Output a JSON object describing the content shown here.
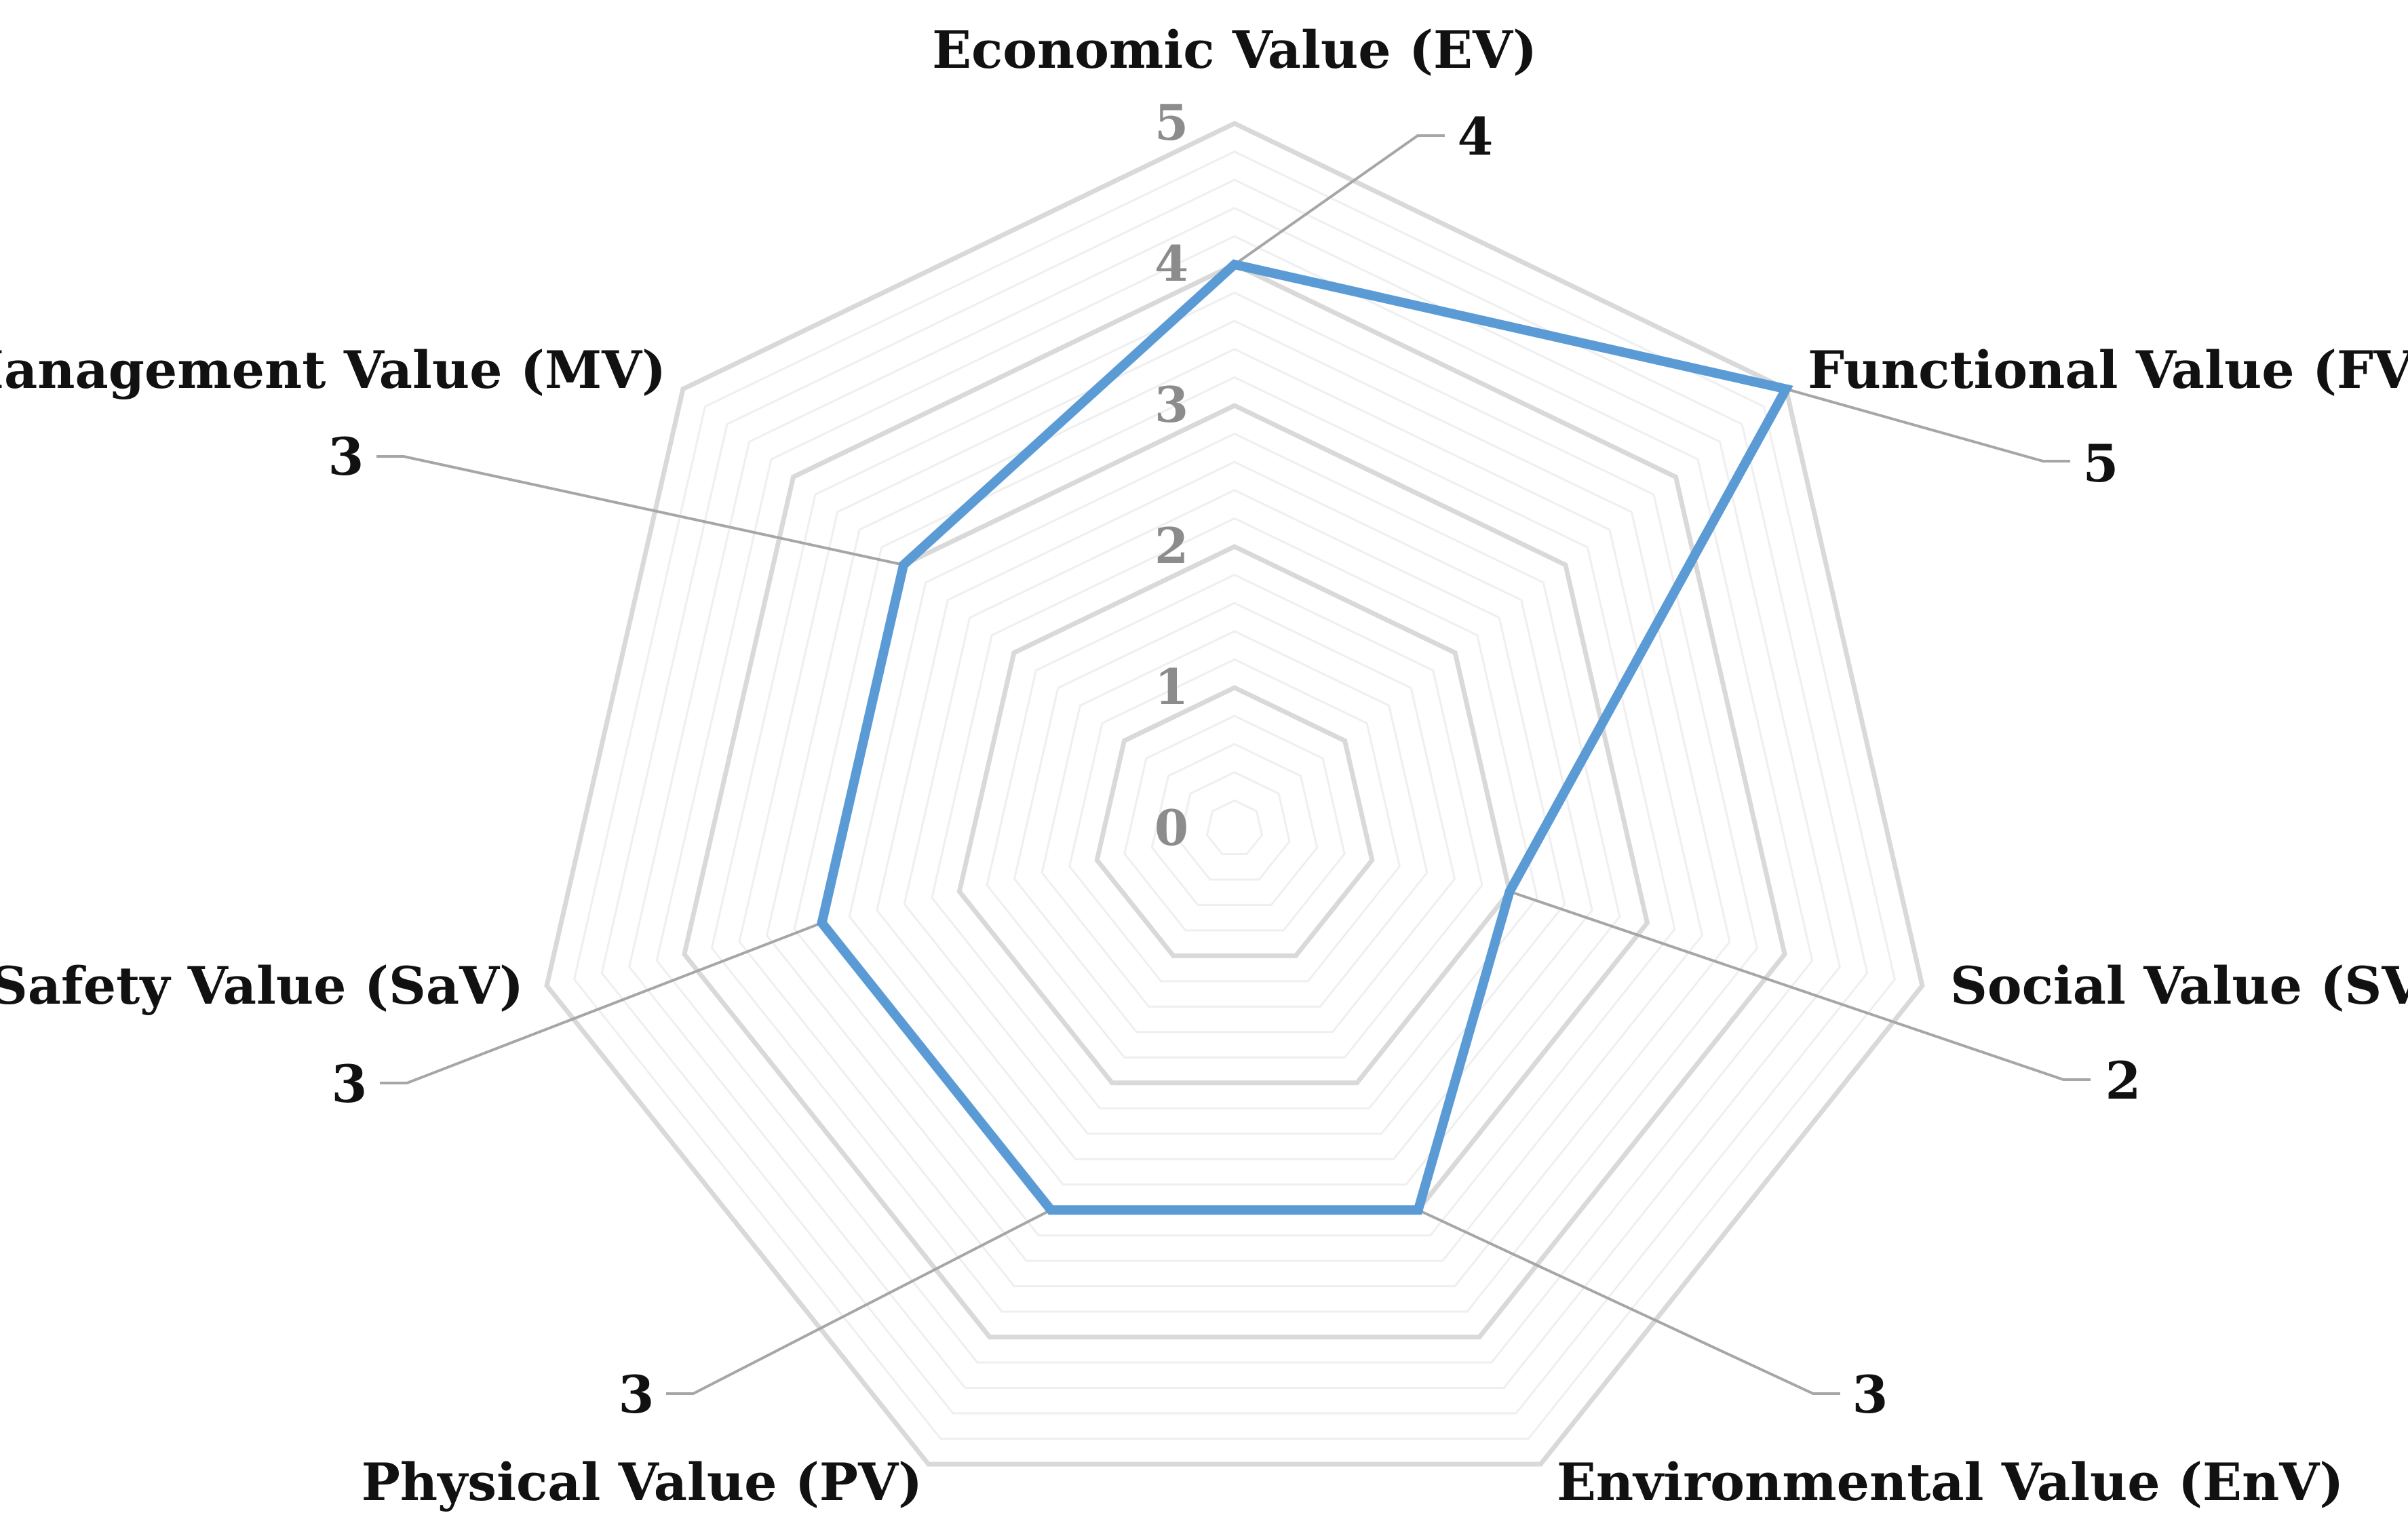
{
  "chart_data": {
    "type": "radar",
    "title": "",
    "categories": [
      "Economic Value (EV)",
      "Functional Value (FV)",
      "Social Value (SV)",
      "Environmental Value (EnV)",
      "Physical Value (PV)",
      "Safety Value (SaV)",
      "Management Value (MV)"
    ],
    "series": [
      {
        "values": [
          4,
          5,
          2,
          3,
          3,
          3,
          3
        ],
        "color": "#5B9BD5"
      }
    ],
    "data_labels": [
      "4",
      "5",
      "2",
      "3",
      "3",
      "3",
      "3"
    ],
    "r_range": [
      0,
      5
    ],
    "r_ticks": [
      "0",
      "1",
      "2",
      "3",
      "4",
      "5"
    ],
    "minor_step": 0.2,
    "grid": true,
    "legend": "none",
    "colors": {
      "major_grid": "#d9d9d9",
      "minor_grid": "#efefef",
      "leader": "#a6a6a6",
      "tick_text": "#8c8c8c",
      "text": "#111111"
    }
  }
}
